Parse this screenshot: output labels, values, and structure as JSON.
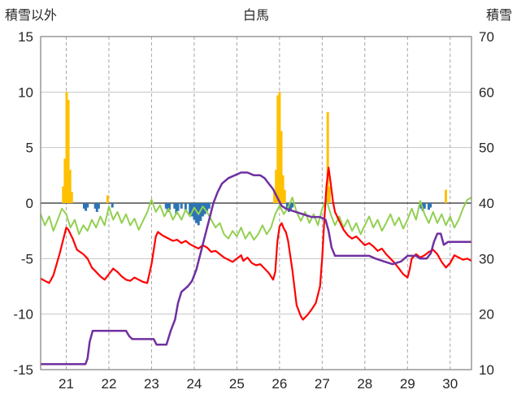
{
  "header": {
    "left_axis_title": "積雪以外",
    "title": "白馬",
    "right_axis_title": "積雪"
  },
  "chart_data": {
    "type": "combo",
    "title": "白馬",
    "x_range": [
      20.4,
      30.5
    ],
    "x_ticks": [
      21,
      22,
      23,
      24,
      25,
      26,
      27,
      28,
      29,
      30
    ],
    "left_axis": {
      "label": "積雪以外",
      "min": -15,
      "max": 15,
      "ticks": [
        15,
        10,
        5,
        0,
        -5,
        -10,
        -15
      ]
    },
    "right_axis": {
      "label": "積雪",
      "min": 10,
      "max": 70,
      "ticks": [
        70,
        60,
        50,
        40,
        30,
        20,
        10
      ]
    },
    "colors": {
      "grid": "#c6c6c6",
      "dash_grid": "#a6a6a6",
      "zero_line": "#4d4d4d",
      "border": "#7f7f7f",
      "tick_text": "#262626",
      "orange_bars": "#FFC000",
      "blue_bars": "#2E74B5",
      "green_line": "#92D050",
      "red_line": "#FF0000",
      "purple_line": "#7030A0"
    },
    "series": [
      {
        "name": "precip-bars-orange",
        "type": "bar",
        "axis": "left",
        "color": "#FFC000",
        "points": [
          [
            20.93,
            1.5
          ],
          [
            20.97,
            4.0
          ],
          [
            21.01,
            10.0
          ],
          [
            21.05,
            9.3
          ],
          [
            21.09,
            3.0
          ],
          [
            21.13,
            1.0
          ],
          [
            21.97,
            0.7
          ],
          [
            25.88,
            1.0
          ],
          [
            25.92,
            3.0
          ],
          [
            25.96,
            9.7
          ],
          [
            26.0,
            10.0
          ],
          [
            26.04,
            6.5
          ],
          [
            26.08,
            2.5
          ],
          [
            26.12,
            1.2
          ],
          [
            27.13,
            8.2
          ],
          [
            27.17,
            1.5
          ],
          [
            29.9,
            1.2
          ]
        ]
      },
      {
        "name": "snowfall-bars-blue",
        "type": "bar",
        "axis": "left",
        "color": "#2E74B5",
        "points": [
          [
            21.42,
            -0.5
          ],
          [
            21.46,
            -0.7
          ],
          [
            21.5,
            -0.4
          ],
          [
            21.68,
            -0.5
          ],
          [
            21.72,
            -0.8
          ],
          [
            21.76,
            -0.5
          ],
          [
            22.08,
            -0.4
          ],
          [
            23.34,
            -0.5
          ],
          [
            23.38,
            -0.8
          ],
          [
            23.42,
            -0.6
          ],
          [
            23.54,
            -0.5
          ],
          [
            23.58,
            -1.0
          ],
          [
            23.62,
            -0.7
          ],
          [
            23.7,
            -0.5
          ],
          [
            23.8,
            -0.6
          ],
          [
            23.9,
            -1.0
          ],
          [
            23.95,
            -1.2
          ],
          [
            24.0,
            -1.5
          ],
          [
            24.05,
            -1.8
          ],
          [
            24.1,
            -2.0
          ],
          [
            24.15,
            -1.6
          ],
          [
            24.2,
            -1.2
          ],
          [
            24.25,
            -1.0
          ],
          [
            24.3,
            -0.7
          ],
          [
            24.35,
            -0.5
          ],
          [
            26.18,
            -0.5
          ],
          [
            26.22,
            -0.8
          ],
          [
            26.26,
            -0.6
          ],
          [
            26.3,
            -0.4
          ],
          [
            29.32,
            -0.5
          ],
          [
            29.36,
            -0.7
          ],
          [
            29.4,
            -0.5
          ],
          [
            29.5,
            -0.6
          ],
          [
            29.54,
            -0.4
          ]
        ]
      },
      {
        "name": "green-line",
        "type": "line",
        "axis": "left",
        "color": "#92D050",
        "width": 2,
        "x0": 20.4,
        "dx": 0.1,
        "values": [
          -1.0,
          -2.0,
          -1.2,
          -2.5,
          -1.5,
          -0.5,
          -1.0,
          -2.2,
          -1.5,
          -2.8,
          -2.0,
          -2.5,
          -1.5,
          -2.2,
          -1.2,
          -2.0,
          -0.3,
          -1.5,
          -0.8,
          -1.8,
          -1.0,
          -2.0,
          -1.4,
          -2.4,
          -1.6,
          -0.8,
          0.3,
          -0.8,
          -0.2,
          -1.2,
          -0.5,
          -1.5,
          -0.8,
          -1.5,
          -0.6,
          -1.2,
          -0.4,
          -1.0,
          -0.3,
          -0.8,
          -1.5,
          -2.2,
          -1.8,
          -2.8,
          -3.2,
          -2.5,
          -3.0,
          -2.2,
          -3.2,
          -2.6,
          -3.3,
          -2.8,
          -2.0,
          -2.8,
          -2.2,
          -1.0,
          -0.2,
          -1.0,
          -0.4,
          0.5,
          -0.8,
          -1.6,
          -0.8,
          -1.8,
          -1.0,
          -2.0,
          -0.5,
          0.3,
          -1.0,
          -2.0,
          -1.2,
          -2.2,
          -1.5,
          -2.5,
          -1.8,
          -2.8,
          -2.0,
          -1.2,
          -2.2,
          -1.5,
          -2.5,
          -1.8,
          -1.0,
          -2.0,
          -1.3,
          -2.3,
          -1.5,
          -0.5,
          -1.5,
          0.2,
          -1.0,
          -1.8,
          -0.8,
          -1.8,
          -1.0,
          -2.0,
          -1.2,
          -2.2,
          -1.5,
          -0.5,
          0.3,
          0.5
        ]
      },
      {
        "name": "red-line",
        "type": "line",
        "axis": "left",
        "color": "#FF0000",
        "width": 2.2,
        "points": [
          [
            20.4,
            -6.8
          ],
          [
            20.5,
            -7.0
          ],
          [
            20.6,
            -7.2
          ],
          [
            20.7,
            -6.5
          ],
          [
            20.85,
            -4.5
          ],
          [
            21.0,
            -2.2
          ],
          [
            21.05,
            -2.4
          ],
          [
            21.15,
            -3.2
          ],
          [
            21.25,
            -4.2
          ],
          [
            21.4,
            -4.6
          ],
          [
            21.5,
            -5.0
          ],
          [
            21.6,
            -5.8
          ],
          [
            21.7,
            -6.2
          ],
          [
            21.8,
            -6.6
          ],
          [
            21.9,
            -6.9
          ],
          [
            22.0,
            -6.4
          ],
          [
            22.1,
            -5.9
          ],
          [
            22.2,
            -6.2
          ],
          [
            22.3,
            -6.6
          ],
          [
            22.4,
            -6.9
          ],
          [
            22.5,
            -7.0
          ],
          [
            22.6,
            -6.7
          ],
          [
            22.7,
            -6.9
          ],
          [
            22.8,
            -7.1
          ],
          [
            22.9,
            -7.2
          ],
          [
            23.0,
            -5.5
          ],
          [
            23.1,
            -3.0
          ],
          [
            23.15,
            -2.6
          ],
          [
            23.25,
            -2.9
          ],
          [
            23.35,
            -3.1
          ],
          [
            23.5,
            -3.4
          ],
          [
            23.6,
            -3.3
          ],
          [
            23.7,
            -3.6
          ],
          [
            23.8,
            -3.4
          ],
          [
            23.9,
            -3.7
          ],
          [
            24.0,
            -3.9
          ],
          [
            24.1,
            -4.1
          ],
          [
            24.2,
            -3.8
          ],
          [
            24.3,
            -4.0
          ],
          [
            24.4,
            -4.4
          ],
          [
            24.5,
            -4.3
          ],
          [
            24.6,
            -4.6
          ],
          [
            24.7,
            -4.9
          ],
          [
            24.8,
            -5.1
          ],
          [
            24.9,
            -5.3
          ],
          [
            25.0,
            -5.0
          ],
          [
            25.1,
            -4.7
          ],
          [
            25.15,
            -5.2
          ],
          [
            25.25,
            -4.9
          ],
          [
            25.35,
            -5.4
          ],
          [
            25.45,
            -5.6
          ],
          [
            25.55,
            -5.5
          ],
          [
            25.65,
            -5.9
          ],
          [
            25.75,
            -6.3
          ],
          [
            25.85,
            -6.9
          ],
          [
            25.9,
            -6.2
          ],
          [
            25.95,
            -3.5
          ],
          [
            26.0,
            -2.1
          ],
          [
            26.05,
            -1.8
          ],
          [
            26.1,
            -2.3
          ],
          [
            26.15,
            -2.6
          ],
          [
            26.2,
            -3.4
          ],
          [
            26.3,
            -6.0
          ],
          [
            26.4,
            -9.2
          ],
          [
            26.5,
            -10.2
          ],
          [
            26.55,
            -10.5
          ],
          [
            26.65,
            -10.1
          ],
          [
            26.75,
            -9.6
          ],
          [
            26.85,
            -9.0
          ],
          [
            26.95,
            -7.5
          ],
          [
            27.0,
            -5.0
          ],
          [
            27.05,
            -1.5
          ],
          [
            27.1,
            1.5
          ],
          [
            27.15,
            3.2
          ],
          [
            27.2,
            1.8
          ],
          [
            27.25,
            0.2
          ],
          [
            27.3,
            -0.8
          ],
          [
            27.4,
            -1.6
          ],
          [
            27.5,
            -2.4
          ],
          [
            27.6,
            -2.9
          ],
          [
            27.7,
            -3.2
          ],
          [
            27.8,
            -3.0
          ],
          [
            27.9,
            -3.4
          ],
          [
            28.0,
            -3.8
          ],
          [
            28.1,
            -3.6
          ],
          [
            28.2,
            -3.9
          ],
          [
            28.3,
            -4.3
          ],
          [
            28.4,
            -4.1
          ],
          [
            28.5,
            -4.6
          ],
          [
            28.6,
            -5.0
          ],
          [
            28.7,
            -5.4
          ],
          [
            28.8,
            -5.9
          ],
          [
            28.9,
            -6.4
          ],
          [
            29.0,
            -6.7
          ],
          [
            29.05,
            -6.0
          ],
          [
            29.1,
            -5.0
          ],
          [
            29.2,
            -4.6
          ],
          [
            29.3,
            -4.9
          ],
          [
            29.4,
            -4.7
          ],
          [
            29.5,
            -4.4
          ],
          [
            29.6,
            -4.2
          ],
          [
            29.7,
            -4.6
          ],
          [
            29.8,
            -5.3
          ],
          [
            29.9,
            -5.8
          ],
          [
            30.0,
            -5.4
          ],
          [
            30.1,
            -4.7
          ],
          [
            30.2,
            -4.9
          ],
          [
            30.3,
            -5.1
          ],
          [
            30.4,
            -5.0
          ],
          [
            30.5,
            -5.2
          ]
        ]
      },
      {
        "name": "purple-line-snowdepth",
        "type": "line",
        "axis": "right",
        "color": "#7030A0",
        "width": 2.5,
        "points": [
          [
            20.4,
            11
          ],
          [
            21.45,
            11
          ],
          [
            21.5,
            12
          ],
          [
            21.55,
            15
          ],
          [
            21.62,
            17
          ],
          [
            22.4,
            17
          ],
          [
            22.48,
            16
          ],
          [
            22.55,
            15.5
          ],
          [
            23.05,
            15.5
          ],
          [
            23.12,
            14.5
          ],
          [
            23.35,
            14.5
          ],
          [
            23.45,
            17
          ],
          [
            23.55,
            19
          ],
          [
            23.62,
            22
          ],
          [
            23.7,
            24
          ],
          [
            23.85,
            25
          ],
          [
            23.95,
            26
          ],
          [
            24.05,
            28
          ],
          [
            24.15,
            31
          ],
          [
            24.25,
            34
          ],
          [
            24.35,
            37
          ],
          [
            24.45,
            40
          ],
          [
            24.55,
            42
          ],
          [
            24.65,
            43.5
          ],
          [
            24.8,
            44.5
          ],
          [
            24.95,
            45
          ],
          [
            25.1,
            45.5
          ],
          [
            25.25,
            45.5
          ],
          [
            25.4,
            45
          ],
          [
            25.55,
            45
          ],
          [
            25.65,
            44.5
          ],
          [
            25.75,
            43.5
          ],
          [
            25.85,
            42.5
          ],
          [
            25.95,
            41
          ],
          [
            26.05,
            39.5
          ],
          [
            26.15,
            39
          ],
          [
            26.35,
            38.5
          ],
          [
            26.55,
            38
          ],
          [
            26.75,
            37.5
          ],
          [
            26.95,
            37.5
          ],
          [
            27.08,
            37
          ],
          [
            27.15,
            35
          ],
          [
            27.22,
            32
          ],
          [
            27.3,
            30.5
          ],
          [
            27.6,
            30.5
          ],
          [
            28.1,
            30.5
          ],
          [
            28.25,
            30
          ],
          [
            28.45,
            29.5
          ],
          [
            28.65,
            29
          ],
          [
            28.85,
            29.5
          ],
          [
            29.0,
            30.5
          ],
          [
            29.2,
            30.5
          ],
          [
            29.3,
            30
          ],
          [
            29.45,
            30
          ],
          [
            29.55,
            31
          ],
          [
            29.62,
            33
          ],
          [
            29.7,
            34.5
          ],
          [
            29.78,
            34.5
          ],
          [
            29.85,
            32.5
          ],
          [
            29.95,
            33
          ],
          [
            30.2,
            33
          ],
          [
            30.5,
            33
          ]
        ]
      }
    ]
  }
}
